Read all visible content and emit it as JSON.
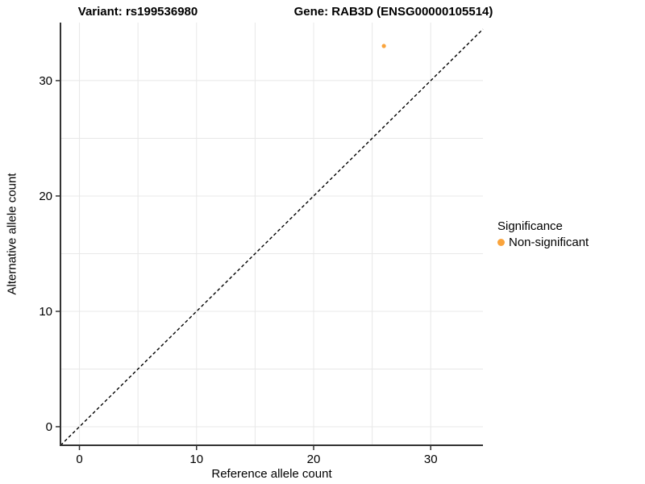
{
  "titles": {
    "variant": "Variant: rs199536980",
    "gene": "Gene: RAB3D (ENSG00000105514)"
  },
  "legend": {
    "title": "Significance",
    "items": [
      {
        "label": "Non-significant",
        "color": "#FAA43C"
      }
    ]
  },
  "chart_data": {
    "type": "scatter",
    "title_left": "Variant: rs199536980",
    "title_right": "Gene: RAB3D (ENSG00000105514)",
    "xlabel": "Reference allele count",
    "ylabel": "Alternative allele count",
    "xlim": [
      -1.62,
      34.46
    ],
    "ylim": [
      -1.61,
      35.03
    ],
    "x_ticks": [
      0,
      10,
      20,
      30
    ],
    "y_ticks": [
      0,
      10,
      20,
      30
    ],
    "grid": {
      "on": true,
      "step": 5,
      "color": "#e8e8e8"
    },
    "reference_line": {
      "type": "identity",
      "slope": 1,
      "intercept": 0,
      "style": "dashed",
      "color": "#000000"
    },
    "series": [
      {
        "name": "Non-significant",
        "color": "#FAA43C",
        "points": [
          {
            "x": 26,
            "y": 33
          }
        ]
      }
    ],
    "legend_position": "right",
    "legend_title": "Significance",
    "colors": {
      "axis": "#333333",
      "tick_label": "#000000",
      "point": "#FAA43C"
    }
  }
}
